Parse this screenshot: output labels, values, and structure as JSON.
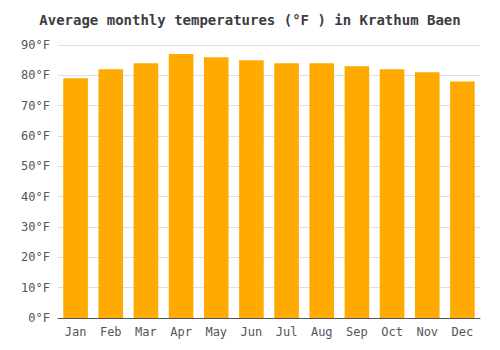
{
  "chart_data": {
    "type": "bar",
    "title": "Average monthly temperatures (°F ) in Krathum Baen",
    "categories": [
      "Jan",
      "Feb",
      "Mar",
      "Apr",
      "May",
      "Jun",
      "Jul",
      "Aug",
      "Sep",
      "Oct",
      "Nov",
      "Dec"
    ],
    "values": [
      79,
      82,
      84,
      87,
      86,
      85,
      84,
      84,
      83,
      82,
      81,
      78
    ],
    "color": "#FFAA00",
    "ylim": [
      0,
      90
    ],
    "yticks": [
      {
        "value": 0,
        "label": "0°F"
      },
      {
        "value": 10,
        "label": "10°F"
      },
      {
        "value": 20,
        "label": "20°F"
      },
      {
        "value": 30,
        "label": "30°F"
      },
      {
        "value": 40,
        "label": "40°F"
      },
      {
        "value": 50,
        "label": "50°F"
      },
      {
        "value": 60,
        "label": "60°F"
      },
      {
        "value": 70,
        "label": "70°F"
      },
      {
        "value": 80,
        "label": "80°F"
      },
      {
        "value": 90,
        "label": "90°F"
      }
    ],
    "grid": true
  }
}
